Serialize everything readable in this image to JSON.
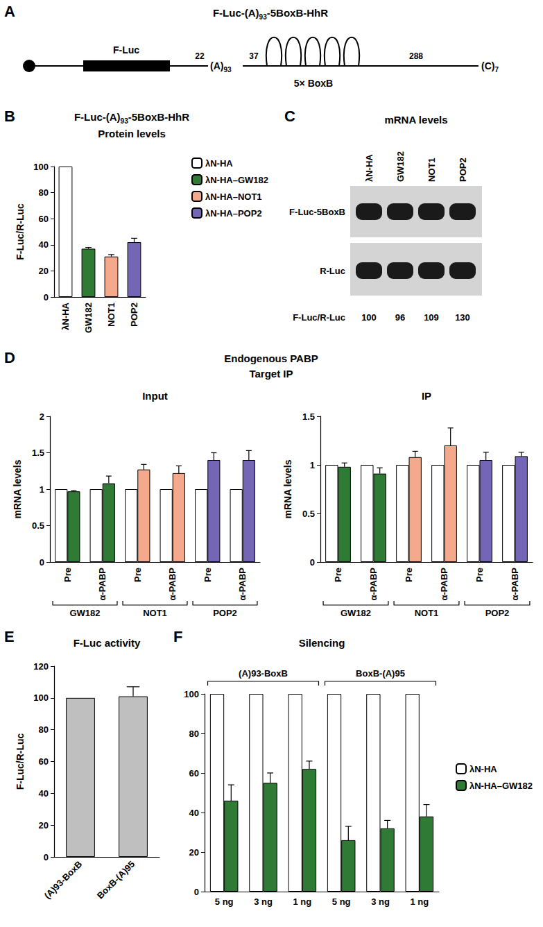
{
  "panel_A": {
    "label": "A",
    "title": "F-Luc-(A)93-5BoxB-HhR",
    "cds": "F-Luc",
    "utr_length": "22",
    "poly_a": "(A)93",
    "spacer_length": "37",
    "boxb": "5× BoxB",
    "tail_length": "288",
    "end": "(C)7"
  },
  "panel_C": {
    "label": "C",
    "title": "mRNA levels",
    "lanes": [
      "λN-HA",
      "GW182",
      "NOT1",
      "POP2"
    ],
    "rows": [
      "F-Luc-5BoxB",
      "R-Luc"
    ],
    "ratio_label": "F-Luc/R-Luc",
    "ratios": [
      100,
      96,
      109,
      130
    ]
  },
  "panel_D": {
    "label": "D",
    "title": "Endogenous PABP",
    "subtitle": "Target IP"
  },
  "chart_data": [
    {
      "type": "bar",
      "panel_label": "B",
      "title": "F-Luc-(A)93-5BoxB-HhR",
      "subtitle": "Protein levels",
      "categories": [
        "λN-HA",
        "GW182",
        "NOT1",
        "POP2"
      ],
      "stacked": true,
      "series": [
        {
          "name": "λN-HA",
          "color": "#ffffff",
          "values": [
            100,
            null,
            null,
            null
          ]
        },
        {
          "name": "λN-HA–GW182",
          "color": "#2f7a34",
          "values": [
            null,
            37,
            null,
            null
          ],
          "errors": [
            null,
            1,
            null,
            null
          ]
        },
        {
          "name": "λN-HA–NOT1",
          "color": "#f4a88c",
          "values": [
            null,
            null,
            31,
            null
          ],
          "errors": [
            null,
            null,
            1.5,
            null
          ]
        },
        {
          "name": "λN-HA–POP2",
          "color": "#7565b5",
          "values": [
            null,
            null,
            null,
            42
          ],
          "errors": [
            null,
            null,
            null,
            3
          ]
        }
      ],
      "ylabel": "F-Luc/R-Luc",
      "ylim": [
        0,
        100
      ],
      "yticks": [
        0,
        20,
        40,
        60,
        80,
        100
      ],
      "grid": false,
      "legend": "top-right"
    },
    {
      "type": "bar",
      "title": "Input",
      "categories": [
        "Pre",
        "α-PABP",
        "Pre",
        "α-PABP",
        "Pre",
        "α-PABP"
      ],
      "groups": [
        "GW182",
        "NOT1",
        "POP2"
      ],
      "series": [
        {
          "color": "#ffffff",
          "values": [
            1,
            1,
            1,
            1,
            1,
            1
          ]
        },
        {
          "colors": [
            "#2f7a34",
            "#2f7a34",
            "#f4a88c",
            "#f4a88c",
            "#7565b5",
            "#7565b5"
          ],
          "values": [
            0.97,
            1.08,
            1.27,
            1.22,
            1.4,
            1.4
          ],
          "errors": [
            0.01,
            0.1,
            0.07,
            0.1,
            0.1,
            0.13
          ]
        }
      ],
      "ylabel": "mRNA levels",
      "ylim": [
        0,
        2
      ],
      "yticks": [
        0,
        0.5,
        1,
        1.5,
        2
      ],
      "grid": false
    },
    {
      "type": "bar",
      "title": "IP",
      "categories": [
        "Pre",
        "α-PABP",
        "Pre",
        "α-PABP",
        "Pre",
        "α-PABP"
      ],
      "groups": [
        "GW182",
        "NOT1",
        "POP2"
      ],
      "series": [
        {
          "color": "#ffffff",
          "values": [
            1,
            1,
            1,
            1,
            1,
            1
          ]
        },
        {
          "colors": [
            "#2f7a34",
            "#2f7a34",
            "#f4a88c",
            "#f4a88c",
            "#7565b5",
            "#7565b5"
          ],
          "values": [
            0.98,
            0.91,
            1.08,
            1.2,
            1.05,
            1.09
          ],
          "errors": [
            0.04,
            0.06,
            0.06,
            0.18,
            0.08,
            0.04
          ]
        }
      ],
      "ylabel": "mRNA levels",
      "ylim": [
        0,
        1.5
      ],
      "yticks": [
        0,
        0.5,
        1,
        1.5
      ],
      "grid": false
    },
    {
      "type": "bar",
      "panel_label": "E",
      "title": "F-Luc activity",
      "categories": [
        "(A)93-BoxB",
        "BoxB-(A)95"
      ],
      "values": [
        100,
        101
      ],
      "errors": [
        null,
        6
      ],
      "color": "#bfbfbf",
      "ylabel": "F-Luc/R-Luc",
      "ylim": [
        0,
        120
      ],
      "yticks": [
        0,
        20,
        40,
        60,
        80,
        100,
        120
      ],
      "grid": false
    },
    {
      "type": "bar",
      "panel_label": "F",
      "title": "Silencing",
      "categories": [
        "5 ng",
        "3 ng",
        "1 ng",
        "5 ng",
        "3 ng",
        "1 ng"
      ],
      "groups": [
        "(A)93-BoxB",
        "BoxB-(A)95"
      ],
      "series": [
        {
          "name": "λN-HA",
          "color": "#ffffff",
          "values": [
            100,
            100,
            100,
            100,
            100,
            100
          ]
        },
        {
          "name": "λN-HA–GW182",
          "color": "#2f7a34",
          "values": [
            46,
            55,
            62,
            26,
            32,
            38
          ],
          "errors": [
            8,
            5,
            4,
            7,
            4,
            6
          ]
        }
      ],
      "ylim": [
        0,
        100
      ],
      "yticks": [
        0,
        20,
        40,
        60,
        80,
        100
      ],
      "grid": false,
      "legend": "right"
    }
  ]
}
